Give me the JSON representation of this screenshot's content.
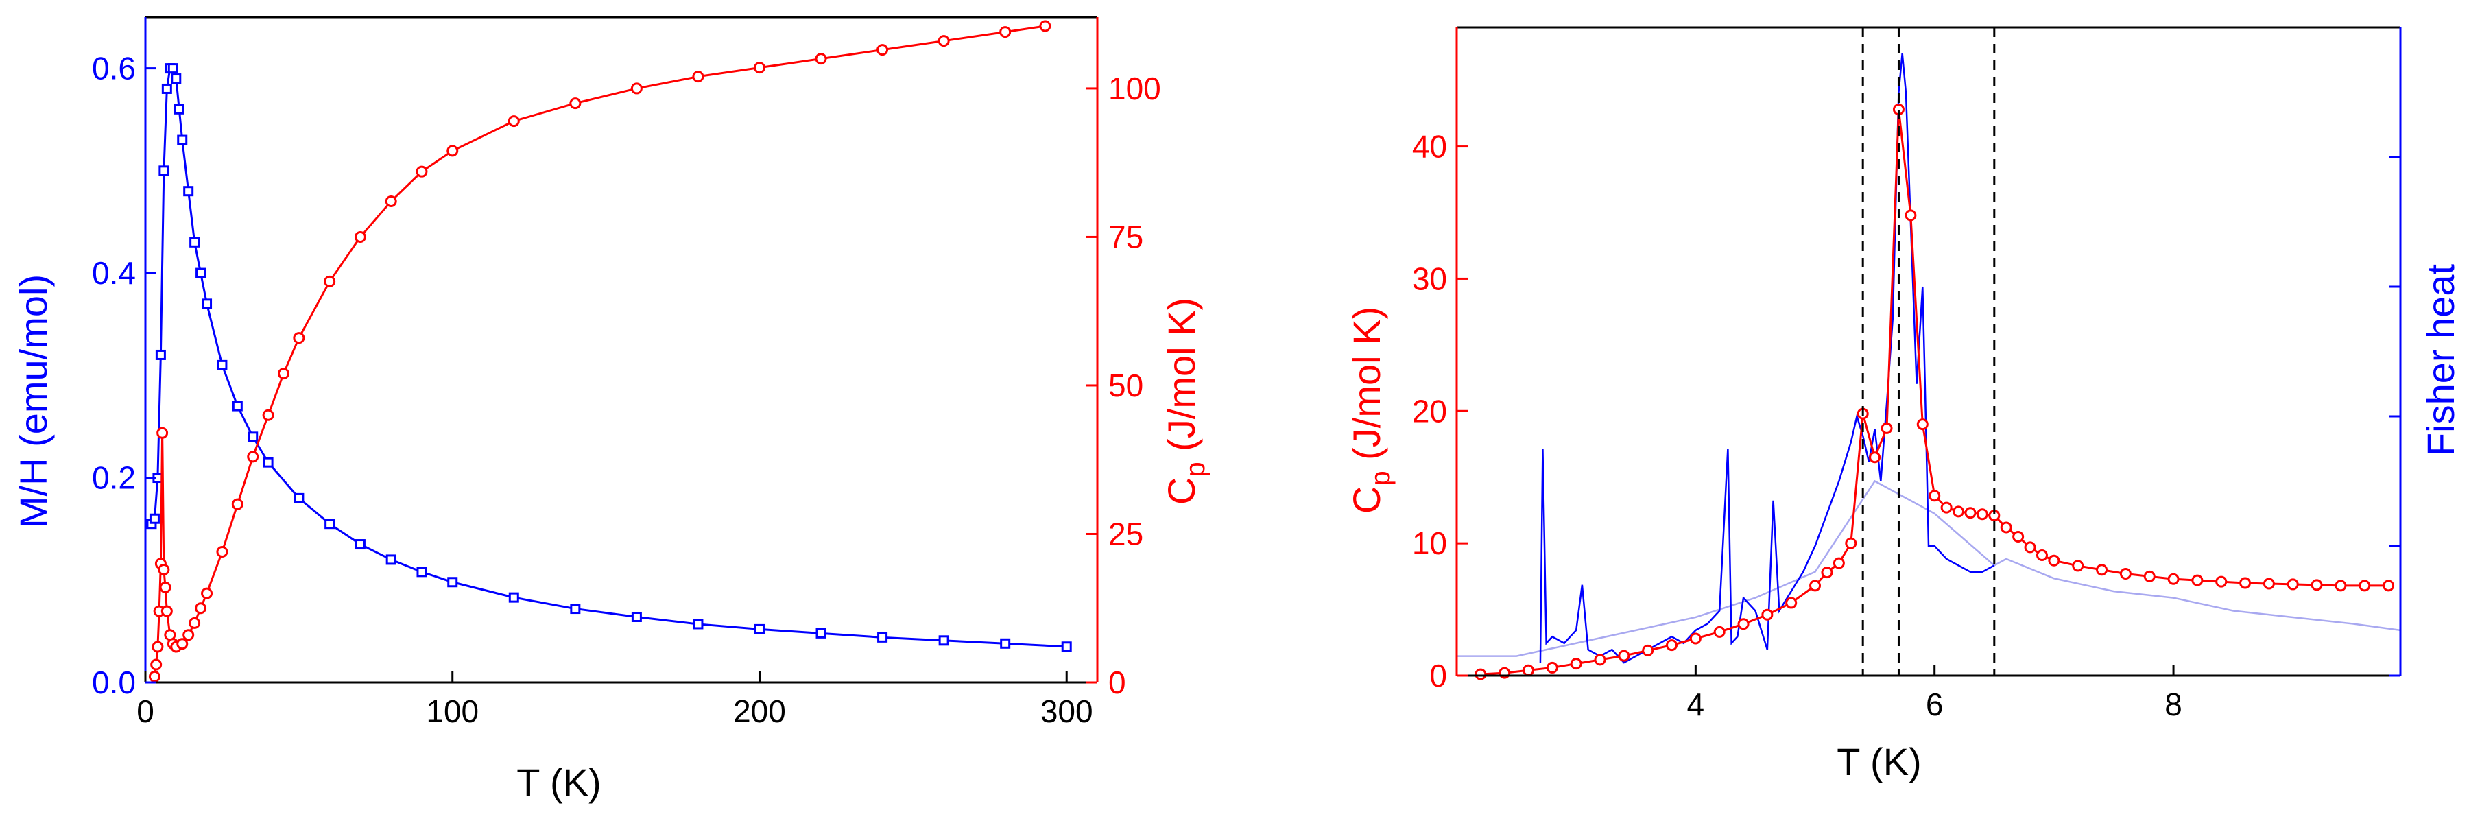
{
  "colors": {
    "left_axis": "#0000ff",
    "right_axis": "#ff0000",
    "fisher_faint": "#a8a8f0",
    "axis": "#000000",
    "guide_lines": "#000000"
  },
  "chart_data": [
    {
      "type": "scatter",
      "title": "",
      "xlabel": "T (K)",
      "ylabel_left": "M/H (emu/mol)",
      "ylabel_right_main": "C",
      "ylabel_right_sub": "p",
      "ylabel_right_rest": " (J/mol K)",
      "xlim": [
        0,
        310
      ],
      "ylim_left": [
        0,
        0.65
      ],
      "ylim_right": [
        0,
        112
      ],
      "xticks": [
        "0",
        "100",
        "200",
        "300"
      ],
      "xtick_values": [
        0,
        100,
        200,
        300
      ],
      "yticks_left": [
        "0.0",
        "0.2",
        "0.4",
        "0.6"
      ],
      "ytick_values_left": [
        0,
        0.2,
        0.4,
        0.6
      ],
      "yticks_right": [
        "0",
        "25",
        "50",
        "75",
        "100"
      ],
      "ytick_values_right": [
        0,
        25,
        50,
        75,
        100
      ],
      "grid": false,
      "series": [
        {
          "axis": "left",
          "color": "#0000ff",
          "marker": "square",
          "x": [
            2,
            3,
            4,
            5,
            6,
            7,
            8,
            9,
            10,
            11,
            12,
            14,
            16,
            18,
            20,
            25,
            30,
            35,
            40,
            50,
            60,
            70,
            80,
            90,
            100,
            120,
            140,
            160,
            180,
            200,
            220,
            240,
            260,
            280,
            300
          ],
          "y": [
            0.155,
            0.16,
            0.2,
            0.32,
            0.5,
            0.58,
            0.6,
            0.6,
            0.59,
            0.56,
            0.53,
            0.48,
            0.43,
            0.4,
            0.37,
            0.31,
            0.27,
            0.24,
            0.215,
            0.18,
            0.155,
            0.135,
            0.12,
            0.108,
            0.098,
            0.083,
            0.072,
            0.064,
            0.057,
            0.052,
            0.048,
            0.044,
            0.041,
            0.038,
            0.035
          ]
        },
        {
          "axis": "right",
          "color": "#ff0000",
          "marker": "circle",
          "x": [
            3,
            3.5,
            4,
            4.5,
            5,
            5.5,
            6,
            6.5,
            7,
            8,
            9,
            10,
            12,
            14,
            16,
            18,
            20,
            25,
            30,
            35,
            40,
            45,
            50,
            60,
            70,
            80,
            90,
            100,
            120,
            140,
            160,
            180,
            200,
            220,
            240,
            260,
            280,
            293
          ],
          "y": [
            1,
            3,
            6,
            12,
            20,
            42,
            19,
            16,
            12,
            8,
            6.5,
            6,
            6.5,
            8,
            10,
            12.5,
            15,
            22,
            30,
            38,
            45,
            52,
            58,
            67.5,
            75,
            81,
            86,
            89.5,
            94.5,
            97.5,
            100,
            102,
            103.5,
            105,
            106.5,
            108,
            109.5,
            110.5
          ]
        }
      ]
    },
    {
      "type": "line",
      "title": "",
      "xlabel": "T (K)",
      "ylabel_left_main": "C",
      "ylabel_left_sub": "p",
      "ylabel_left_rest": " (J/mol K)",
      "ylabel_right": "Fisher heat",
      "xlim": [
        2,
        9.9
      ],
      "ylim_left": [
        0,
        49
      ],
      "ylim_right": [
        0,
        1
      ],
      "xticks": [
        "4",
        "6",
        "8"
      ],
      "xtick_values": [
        4,
        6,
        8
      ],
      "yticks_left": [
        "0",
        "10",
        "20",
        "30",
        "40"
      ],
      "ytick_values_left": [
        0,
        10,
        20,
        30,
        40
      ],
      "yticks_right_values": [
        0,
        0.2,
        0.4,
        0.6,
        0.8
      ],
      "vlines": [
        5.4,
        5.7,
        6.5
      ],
      "grid": false,
      "series": [
        {
          "axis": "left",
          "color": "#ff0000",
          "marker": "circle",
          "x": [
            2.2,
            2.4,
            2.6,
            2.8,
            3.0,
            3.2,
            3.4,
            3.6,
            3.8,
            4.0,
            4.2,
            4.4,
            4.6,
            4.8,
            5.0,
            5.1,
            5.2,
            5.3,
            5.4,
            5.5,
            5.6,
            5.7,
            5.8,
            5.9,
            6.0,
            6.1,
            6.2,
            6.3,
            6.4,
            6.5,
            6.6,
            6.7,
            6.8,
            6.9,
            7.0,
            7.2,
            7.4,
            7.6,
            7.8,
            8.0,
            8.2,
            8.4,
            8.6,
            8.8,
            9.0,
            9.2,
            9.4,
            9.6,
            9.8
          ],
          "y": [
            0.1,
            0.2,
            0.4,
            0.6,
            0.9,
            1.2,
            1.5,
            1.9,
            2.3,
            2.8,
            3.3,
            3.9,
            4.6,
            5.5,
            6.8,
            7.8,
            8.5,
            10,
            19.8,
            16.5,
            18.7,
            42.8,
            34.8,
            19,
            13.6,
            12.7,
            12.4,
            12.3,
            12.2,
            12.1,
            11.2,
            10.5,
            9.7,
            9.1,
            8.7,
            8.3,
            8,
            7.7,
            7.5,
            7.3,
            7.2,
            7.1,
            7,
            6.95,
            6.9,
            6.85,
            6.8,
            6.8,
            6.8
          ]
        },
        {
          "axis": "right",
          "name": "",
          "color": "#0000ff",
          "x": [
            2.7,
            2.72,
            2.75,
            2.8,
            2.9,
            3.0,
            3.05,
            3.1,
            3.2,
            3.3,
            3.4,
            3.5,
            3.6,
            3.7,
            3.8,
            3.9,
            4.0,
            4.1,
            4.2,
            4.27,
            4.3,
            4.35,
            4.4,
            4.5,
            4.6,
            4.65,
            4.7,
            4.8,
            4.9,
            5.0,
            5.1,
            5.2,
            5.3,
            5.35,
            5.4,
            5.45,
            5.5,
            5.55,
            5.6,
            5.65,
            5.7,
            5.73,
            5.76,
            5.8,
            5.85,
            5.9,
            5.92,
            5.95,
            6.0,
            6.1,
            6.2,
            6.3,
            6.4,
            6.5
          ],
          "y": [
            0.02,
            0.35,
            0.05,
            0.06,
            0.05,
            0.07,
            0.14,
            0.04,
            0.03,
            0.04,
            0.02,
            0.03,
            0.04,
            0.05,
            0.06,
            0.05,
            0.07,
            0.08,
            0.1,
            0.35,
            0.05,
            0.06,
            0.12,
            0.1,
            0.04,
            0.27,
            0.1,
            0.13,
            0.16,
            0.2,
            0.25,
            0.3,
            0.36,
            0.4,
            0.37,
            0.33,
            0.38,
            0.3,
            0.42,
            0.55,
            0.9,
            0.96,
            0.9,
            0.7,
            0.45,
            0.6,
            0.45,
            0.2,
            0.2,
            0.18,
            0.17,
            0.16,
            0.16,
            0.17
          ]
        },
        {
          "axis": "right",
          "name": "",
          "color": "#a8a8f0",
          "x": [
            2,
            2.5,
            3,
            3.5,
            4,
            4.5,
            5,
            5.5,
            6,
            6.5,
            6.6,
            7,
            7.5,
            8,
            8.5,
            9,
            9.5,
            9.9
          ],
          "y": [
            0.03,
            0.03,
            0.05,
            0.07,
            0.09,
            0.12,
            0.16,
            0.3,
            0.25,
            0.17,
            0.18,
            0.15,
            0.13,
            0.12,
            0.1,
            0.09,
            0.08,
            0.07
          ]
        }
      ]
    }
  ]
}
